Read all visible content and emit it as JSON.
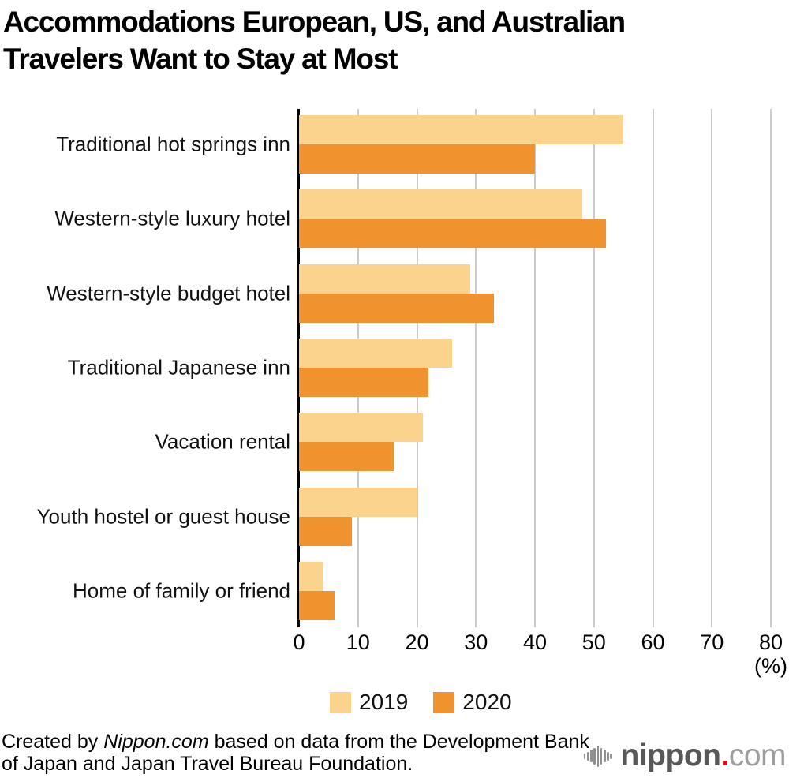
{
  "title": "Accommodations European, US, and Australian Travelers Want to Stay at Most",
  "title_line1": "Accommodations European, US, and Australian",
  "title_line2": "Travelers Want to Stay at Most",
  "chart_data": {
    "type": "bar",
    "orientation": "horizontal",
    "categories": [
      "Traditional hot springs inn",
      "Western-style luxury hotel",
      "Western-style budget hotel",
      "Traditional Japanese inn",
      "Vacation rental",
      "Youth hostel or guest house",
      "Home of family or friend"
    ],
    "series": [
      {
        "name": "2019",
        "color": "#fbd38d",
        "values": [
          55,
          48,
          29,
          26,
          21,
          20,
          4
        ]
      },
      {
        "name": "2020",
        "color": "#f0932e",
        "values": [
          40,
          52,
          33,
          22,
          16,
          9,
          6
        ]
      }
    ],
    "xlim": [
      0,
      80
    ],
    "xticks": [
      0,
      10,
      20,
      30,
      40,
      50,
      60,
      70,
      80
    ],
    "x_unit_label": "(%)",
    "grid": true,
    "gridline_color": "#cccccc",
    "axis_color": "#000000",
    "legend_position": "bottom"
  },
  "legend": {
    "items": [
      {
        "label": "2019",
        "color": "#fbd38d"
      },
      {
        "label": "2020",
        "color": "#f0932e"
      }
    ]
  },
  "footer": {
    "credit": {
      "prefix": "Created by ",
      "source": "Nippon.com",
      "line1_rest": " based on data from the Development Bank",
      "line2": "of Japan and Japan Travel Bureau Foundation."
    },
    "logo": {
      "brand": "nippon",
      "dot": ".",
      "tld": "com"
    }
  }
}
